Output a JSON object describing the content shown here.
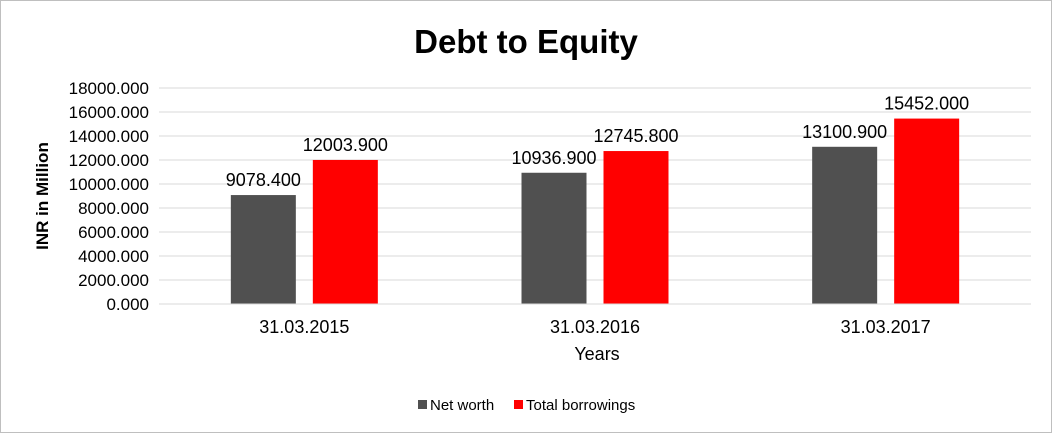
{
  "chart_data": {
    "type": "bar",
    "title": "Debt to Equity",
    "xlabel": "Years",
    "ylabel": "INR in Million",
    "categories": [
      "31.03.2015",
      "31.03.2016",
      "31.03.2017"
    ],
    "series": [
      {
        "name": "Net worth",
        "color": "#505050",
        "values": [
          9078.4,
          10936.9,
          13100.9
        ],
        "labels": [
          "9078.400",
          "10936.900",
          "13100.900"
        ]
      },
      {
        "name": "Total borrowings",
        "color": "#ff0000",
        "values": [
          12003.9,
          12745.8,
          15452.0
        ],
        "labels": [
          "12003.900",
          "12745.800",
          "15452.000"
        ]
      }
    ],
    "ylim": [
      0,
      18000
    ],
    "yticks": [
      "0.000",
      "2000.000",
      "4000.000",
      "6000.000",
      "8000.000",
      "10000.000",
      "12000.000",
      "14000.000",
      "16000.000",
      "18000.000"
    ],
    "grid": true,
    "legend_position": "bottom"
  }
}
